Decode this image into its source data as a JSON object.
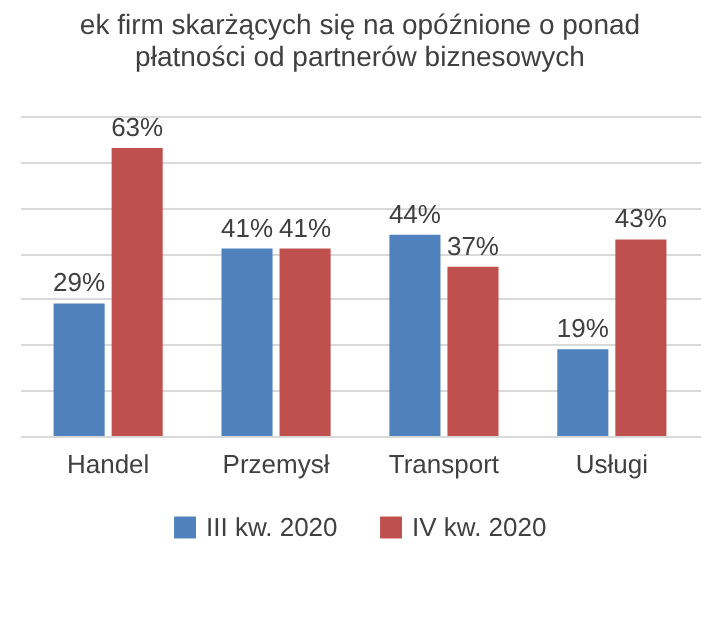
{
  "chart_data": {
    "type": "bar",
    "title": [
      "ek firm skarżących się na  opóźnione o ponad",
      "płatności od partnerów biznesowych"
    ],
    "categories": [
      "Handel",
      "Przemysł",
      "Transport",
      "Usługi"
    ],
    "series": [
      {
        "name": "III kw. 2020",
        "color": "#4f81bd",
        "values": [
          29,
          41,
          44,
          19
        ],
        "value_labels": [
          "29%",
          "41%",
          "44%",
          "19%"
        ]
      },
      {
        "name": "IV kw. 2020",
        "color": "#c0504d",
        "values": [
          63,
          41,
          37,
          43
        ],
        "value_labels": [
          "63%",
          "41%",
          "37%",
          "43%"
        ]
      }
    ],
    "ylim": [
      0,
      70
    ],
    "yticks": [
      {
        "value": 0,
        "label": null
      },
      {
        "value": 10,
        "label": null
      },
      {
        "value": 20,
        "label": null
      },
      {
        "value": 30,
        "label": null
      },
      {
        "value": 40,
        "label": null
      },
      {
        "value": 50,
        "label": null
      },
      {
        "value": 60,
        "label": null
      },
      {
        "value": 70,
        "label": null
      }
    ],
    "grid": "y",
    "tick_labels": "x",
    "legend": "bottom"
  }
}
